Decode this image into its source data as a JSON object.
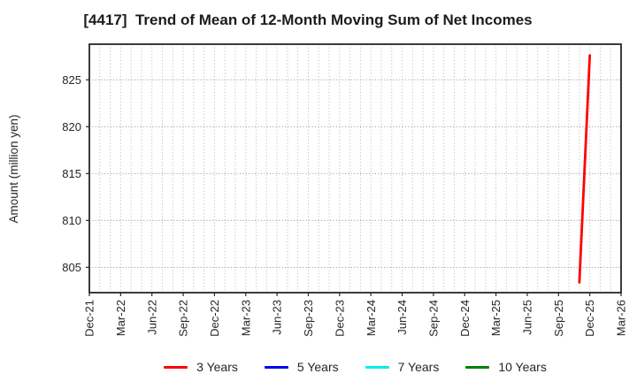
{
  "chart_data": {
    "type": "line",
    "title": "[4417]  Trend of Mean of 12-Month Moving Sum of Net Incomes",
    "ylabel": "Amount (million yen)",
    "xlabel": "",
    "x_tick_labels": [
      "Dec-21",
      "Mar-22",
      "Jun-22",
      "Sep-22",
      "Dec-22",
      "Mar-23",
      "Jun-23",
      "Sep-23",
      "Dec-23",
      "Mar-24",
      "Jun-24",
      "Sep-24",
      "Dec-24",
      "Mar-25",
      "Jun-25",
      "Sep-25",
      "Dec-25",
      "Mar-26"
    ],
    "x_total_months": 51,
    "x_tick_interval_months": 3,
    "ylim": [
      802.3,
      828.8
    ],
    "y_ticks": [
      805,
      810,
      815,
      820,
      825
    ],
    "grid": {
      "vertical_every_months": 1,
      "horizontal_at_y_ticks": true,
      "style": "dotted"
    },
    "legend_position": "bottom-center",
    "frame_color": "#262626",
    "series": [
      {
        "name": "3 Years",
        "color": "#ff0000",
        "points": [
          {
            "month_index": 47,
            "x_label": "Nov-25",
            "value": 803.4
          },
          {
            "month_index": 48,
            "x_label": "Dec-25",
            "value": 827.6
          }
        ]
      },
      {
        "name": "5 Years",
        "color": "#0000ee",
        "points": []
      },
      {
        "name": "7 Years",
        "color": "#00eeee",
        "points": []
      },
      {
        "name": "10 Years",
        "color": "#008000",
        "points": []
      }
    ]
  }
}
